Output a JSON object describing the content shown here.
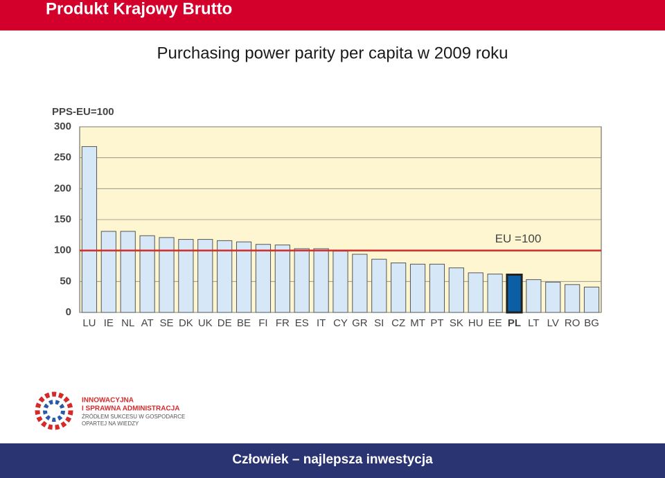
{
  "header": {
    "title": "Produkt Krajowy Brutto",
    "subtitle": "Purchasing power parity per capita w 2009 roku"
  },
  "chart_data": {
    "type": "bar",
    "y_label": "PPS-EU=100",
    "categories": [
      "LU",
      "IE",
      "NL",
      "AT",
      "SE",
      "DK",
      "UK",
      "DE",
      "BE",
      "FI",
      "FR",
      "ES",
      "IT",
      "CY",
      "GR",
      "SI",
      "CZ",
      "MT",
      "PT",
      "SK",
      "HU",
      "EE",
      "PL",
      "LT",
      "LV",
      "RO",
      "BG"
    ],
    "values": [
      268,
      131,
      131,
      124,
      121,
      118,
      118,
      116,
      114,
      110,
      109,
      103,
      103,
      99,
      94,
      86,
      80,
      78,
      78,
      72,
      64,
      62,
      61,
      53,
      49,
      45,
      41
    ],
    "colors": [
      "#d6e8f8",
      "#d6e8f8",
      "#d6e8f8",
      "#d6e8f8",
      "#d6e8f8",
      "#d6e8f8",
      "#d6e8f8",
      "#d6e8f8",
      "#d6e8f8",
      "#d6e8f8",
      "#d6e8f8",
      "#d6e8f8",
      "#d6e8f8",
      "#d6e8f8",
      "#d6e8f8",
      "#d6e8f8",
      "#d6e8f8",
      "#d6e8f8",
      "#d6e8f8",
      "#d6e8f8",
      "#d6e8f8",
      "#d6e8f8",
      "#0b5fa5",
      "#d6e8f8",
      "#d6e8f8",
      "#d6e8f8",
      "#d6e8f8"
    ],
    "ylim": [
      0,
      300
    ],
    "yticks": [
      0,
      50,
      100,
      150,
      200,
      250,
      300
    ],
    "reference_line": {
      "value": 100,
      "label": "EU =100",
      "color": "#d42a2a"
    },
    "plot_background": "#fdf6d0"
  },
  "logo": {
    "lines": [
      "INNOWACYJNA",
      "I SPRAWNA ADMINISTRACJA",
      "ŹRÓDŁEM SUKCESU W GOSPODARCE",
      "OPARTEJ NA WIEDZY"
    ]
  },
  "footer": {
    "text": "Człowiek – najlepsza inwestycja"
  }
}
